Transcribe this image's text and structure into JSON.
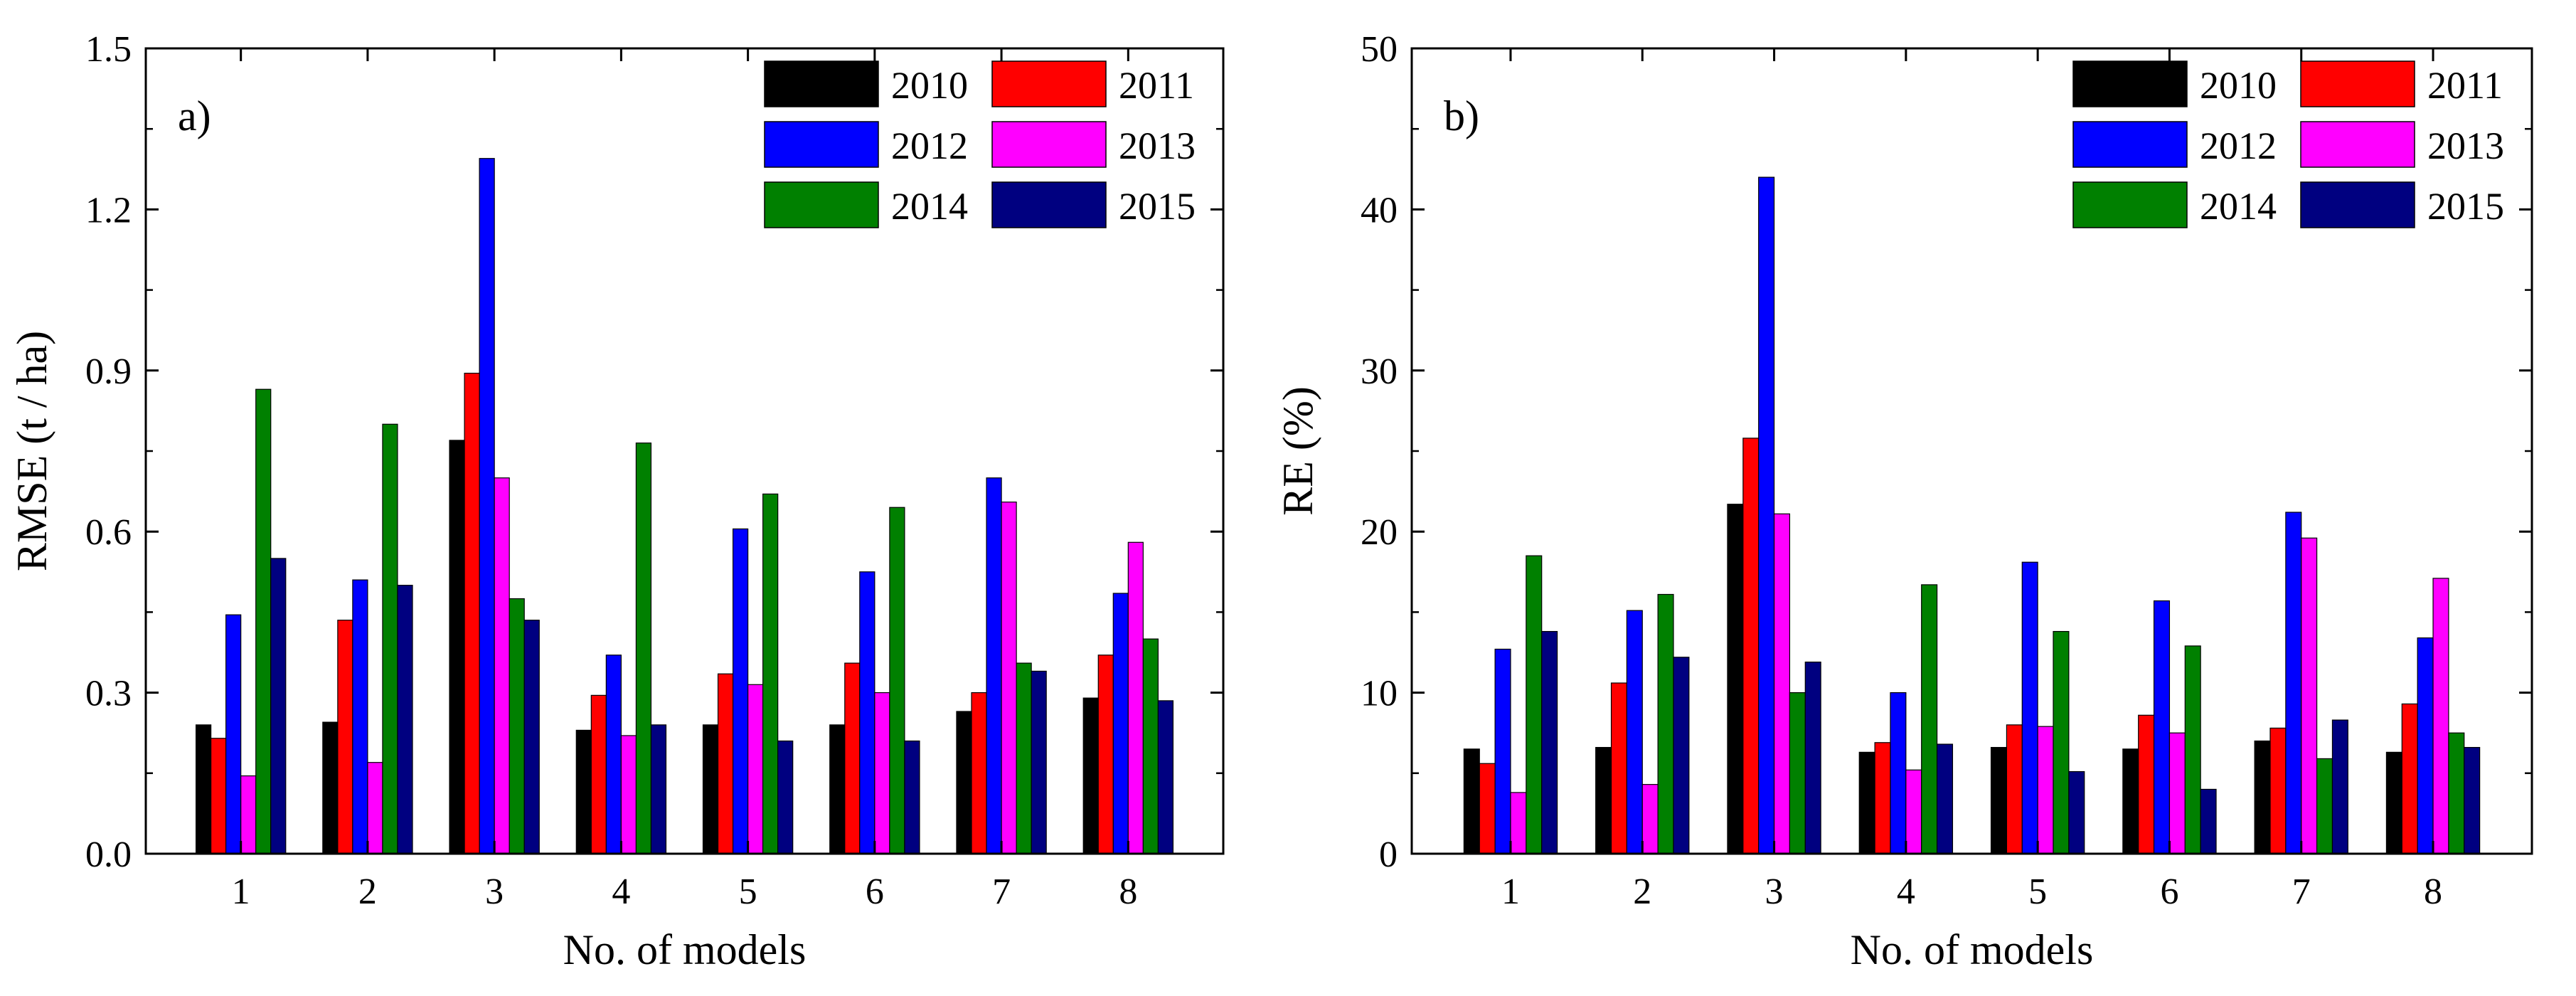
{
  "chart_data": [
    {
      "type": "bar",
      "panel_label": "a)",
      "title": "",
      "xlabel": "No. of models",
      "ylabel": "RMSE (t / ha)",
      "categories": [
        "1",
        "2",
        "3",
        "4",
        "5",
        "6",
        "7",
        "8"
      ],
      "ylim": [
        0,
        1.5
      ],
      "yticks": [
        0.0,
        0.3,
        0.6,
        0.9,
        1.2,
        1.5
      ],
      "ytick_labels": [
        "0.0",
        "0.3",
        "0.6",
        "0.9",
        "1.2",
        "1.5"
      ],
      "legend_position": "top-right",
      "grid": false,
      "series": [
        {
          "name": "2010",
          "color": "#000000",
          "values": [
            0.24,
            0.245,
            0.77,
            0.23,
            0.24,
            0.24,
            0.265,
            0.29
          ]
        },
        {
          "name": "2011",
          "color": "#ff0000",
          "values": [
            0.215,
            0.435,
            0.895,
            0.295,
            0.335,
            0.355,
            0.3,
            0.37
          ]
        },
        {
          "name": "2012",
          "color": "#0000ff",
          "values": [
            0.445,
            0.51,
            1.295,
            0.37,
            0.605,
            0.525,
            0.7,
            0.485
          ]
        },
        {
          "name": "2013",
          "color": "#ff00ff",
          "values": [
            0.145,
            0.17,
            0.7,
            0.22,
            0.315,
            0.3,
            0.655,
            0.58
          ]
        },
        {
          "name": "2014",
          "color": "#008000",
          "values": [
            0.865,
            0.8,
            0.475,
            0.765,
            0.67,
            0.645,
            0.355,
            0.4
          ]
        },
        {
          "name": "2015",
          "color": "#000080",
          "values": [
            0.55,
            0.5,
            0.435,
            0.24,
            0.21,
            0.21,
            0.34,
            0.285
          ]
        }
      ]
    },
    {
      "type": "bar",
      "panel_label": "b)",
      "title": "",
      "xlabel": "No. of models",
      "ylabel": "RE (%)",
      "categories": [
        "1",
        "2",
        "3",
        "4",
        "5",
        "6",
        "7",
        "8"
      ],
      "ylim": [
        0,
        50
      ],
      "yticks": [
        0,
        10,
        20,
        30,
        40,
        50
      ],
      "ytick_labels": [
        "0",
        "10",
        "20",
        "30",
        "40",
        "50"
      ],
      "legend_position": "top-right",
      "grid": false,
      "series": [
        {
          "name": "2010",
          "color": "#000000",
          "values": [
            6.5,
            6.6,
            21.7,
            6.3,
            6.6,
            6.5,
            7.0,
            6.3
          ]
        },
        {
          "name": "2011",
          "color": "#ff0000",
          "values": [
            5.6,
            10.6,
            25.8,
            6.9,
            8.0,
            8.6,
            7.8,
            9.3
          ]
        },
        {
          "name": "2012",
          "color": "#0000ff",
          "values": [
            12.7,
            15.1,
            42.0,
            10.0,
            18.1,
            15.7,
            21.2,
            13.4
          ]
        },
        {
          "name": "2013",
          "color": "#ff00ff",
          "values": [
            3.8,
            4.3,
            21.1,
            5.2,
            7.9,
            7.5,
            19.6,
            17.1
          ]
        },
        {
          "name": "2014",
          "color": "#008000",
          "values": [
            18.5,
            16.1,
            10.0,
            16.7,
            13.8,
            12.9,
            5.9,
            7.5
          ]
        },
        {
          "name": "2015",
          "color": "#000080",
          "values": [
            13.8,
            12.2,
            11.9,
            6.8,
            5.1,
            4.0,
            8.3,
            6.6
          ]
        }
      ]
    }
  ]
}
